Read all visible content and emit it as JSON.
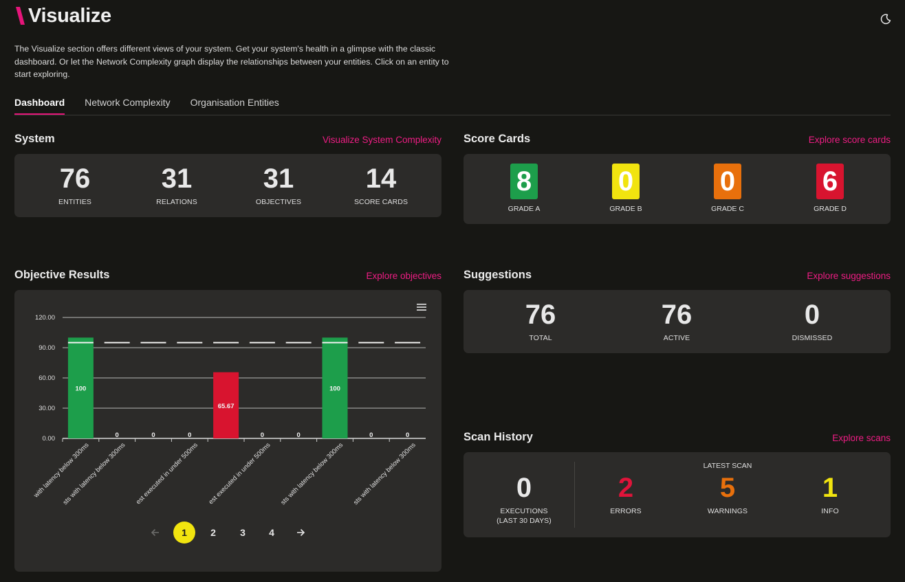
{
  "header": {
    "title": "Visualize",
    "logo_icon": "slash-logo-icon",
    "theme_icon": "moon-icon",
    "intro": "The Visualize section offers different views of your system. Get your system's health in a glimpse with the classic dashboard. Or let the Network Complexity graph display the relationships between your entities. Click on an entity to start exploring."
  },
  "tabs": [
    {
      "label": "Dashboard",
      "active": true
    },
    {
      "label": "Network Complexity",
      "active": false
    },
    {
      "label": "Organisation Entities",
      "active": false
    }
  ],
  "system": {
    "title": "System",
    "link": "Visualize System Complexity",
    "stats": [
      {
        "value": "76",
        "label": "ENTITIES"
      },
      {
        "value": "31",
        "label": "RELATIONS"
      },
      {
        "value": "31",
        "label": "OBJECTIVES"
      },
      {
        "value": "14",
        "label": "SCORE CARDS"
      }
    ]
  },
  "score_cards": {
    "title": "Score Cards",
    "link": "Explore score cards",
    "grades": [
      {
        "value": "8",
        "label": "GRADE A",
        "color": "#1d9e4b"
      },
      {
        "value": "0",
        "label": "GRADE B",
        "color": "#f1e40f"
      },
      {
        "value": "0",
        "label": "GRADE C",
        "color": "#e8700c"
      },
      {
        "value": "6",
        "label": "GRADE D",
        "color": "#d8142f"
      }
    ]
  },
  "objective_results": {
    "title": "Objective Results",
    "link": "Explore objectives",
    "menu_icon": "hamburger-menu-icon",
    "pagination": {
      "prev_icon": "arrow-left-icon",
      "next_icon": "arrow-right-icon",
      "pages": [
        "1",
        "2",
        "3",
        "4"
      ],
      "current": "1"
    }
  },
  "chart_data": {
    "type": "bar",
    "categories": [
      "with latency below 300ms",
      "sts with latency below 300ms",
      "",
      "est executed in under 500ms",
      "",
      "est executed in under 500ms",
      "",
      "sts with latency below 300ms",
      "",
      "sts with latency below 300ms"
    ],
    "values": [
      100,
      0,
      0,
      0,
      65.67,
      0,
      0,
      100,
      0,
      0
    ],
    "value_labels": [
      "100",
      "0",
      "0",
      "0",
      "65.67",
      "0",
      "0",
      "100",
      "0",
      "0"
    ],
    "bar_colors": [
      "#1d9e4b",
      "#1d9e4b",
      "#1d9e4b",
      "#1d9e4b",
      "#d8142f",
      "#1d9e4b",
      "#1d9e4b",
      "#1d9e4b",
      "#1d9e4b",
      "#1d9e4b"
    ],
    "target": 95,
    "yticks": [
      "0.00",
      "30.00",
      "60.00",
      "90.00",
      "120.00"
    ],
    "ylim": [
      0,
      120
    ],
    "grid": true
  },
  "suggestions": {
    "title": "Suggestions",
    "link": "Explore suggestions",
    "stats": [
      {
        "value": "76",
        "label": "TOTAL"
      },
      {
        "value": "76",
        "label": "ACTIVE"
      },
      {
        "value": "0",
        "label": "DISMISSED"
      }
    ]
  },
  "scan_history": {
    "title": "Scan History",
    "link": "Explore scans",
    "executions": {
      "value": "0",
      "label_line1": "EXECUTIONS",
      "label_line2": "(LAST 30 DAYS)"
    },
    "latest_scan_label": "LATEST SCAN",
    "latest": [
      {
        "value": "2",
        "label": "ERRORS",
        "color": "#e0143a"
      },
      {
        "value": "5",
        "label": "WARNINGS",
        "color": "#e8700c"
      },
      {
        "value": "1",
        "label": "INFO",
        "color": "#f1e40f"
      }
    ]
  }
}
